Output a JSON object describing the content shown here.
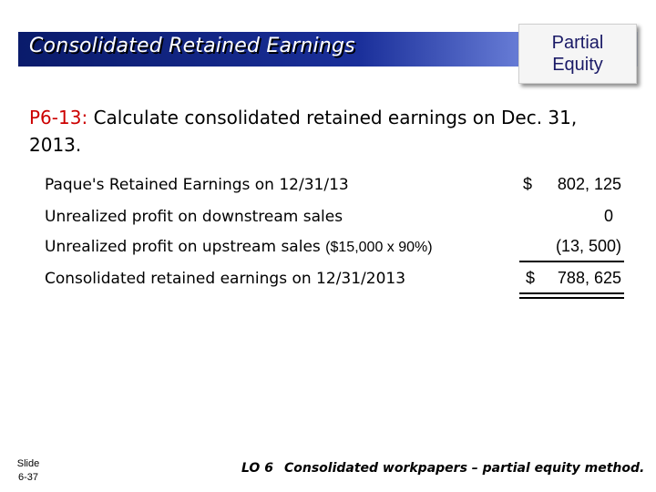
{
  "header": {
    "title": "Consolidated Retained Earnings",
    "badge_line1": "Partial",
    "badge_line2": "Equity"
  },
  "problem": {
    "number": "P6-13:",
    "text": "Calculate consolidated retained earnings on Dec. 31, 2013."
  },
  "rows": [
    {
      "label": "Paque's Retained Earnings on 12/31/13",
      "label_suffix": "",
      "amount_symbol": "$",
      "amount": "802, 125"
    },
    {
      "label": "Unrealized profit on downstream sales",
      "label_suffix": "",
      "amount_symbol": "",
      "amount": "0"
    },
    {
      "label": "Unrealized profit on upstream sales",
      "label_suffix": "($15,000 x 90%)",
      "amount_symbol": "",
      "amount": "(13, 500)"
    },
    {
      "label": "Consolidated retained earnings on 12/31/2013",
      "label_suffix": "",
      "amount_symbol": "$",
      "amount": "788, 625"
    }
  ],
  "slide": {
    "label": "Slide",
    "number": "6-37"
  },
  "footer": {
    "lo": "LO 6",
    "text": "Consolidated workpapers – partial equity method."
  }
}
